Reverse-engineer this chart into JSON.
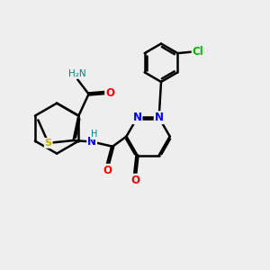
{
  "background_color": "#eeeeee",
  "atom_colors": {
    "C": "#000000",
    "N": "#0000ff",
    "O": "#ff0000",
    "S": "#ccaa00",
    "H": "#008080",
    "Cl": "#00bb00"
  },
  "bond_color": "#000000",
  "bond_width": 1.8,
  "figsize": [
    3.0,
    3.0
  ],
  "dpi": 100
}
